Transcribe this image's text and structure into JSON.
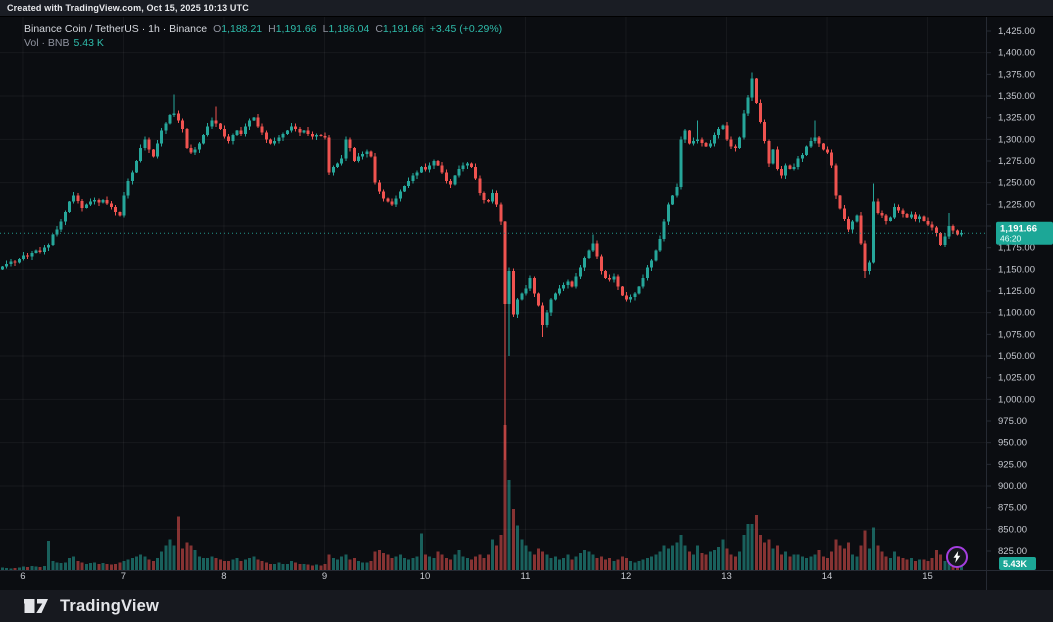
{
  "attribution": "Created with TradingView.com, Oct 15, 2025 10:13 UTC",
  "legend": {
    "title": "Binance Coin / TetherUS · 1h · Binance",
    "ohlc": [
      {
        "k": "O",
        "v": "1,188.21"
      },
      {
        "k": "H",
        "v": "1,191.66"
      },
      {
        "k": "L",
        "v": "1,186.04"
      },
      {
        "k": "C",
        "v": "1,191.66"
      }
    ],
    "change": "+3.45 (+0.29%)",
    "vol_title": "Vol · BNB",
    "vol_value": "5.43 K"
  },
  "price_scale": {
    "last_price_label": {
      "price": "1,191.66",
      "countdown": "46:20"
    },
    "volume_label": "5.43K"
  },
  "footer": {
    "brand": "TradingView"
  },
  "colors": {
    "background": "#0b0d11",
    "strip": "#1a1d24",
    "footer": "#17191f",
    "up": "#26a69a",
    "down": "#ef5350",
    "up_volume": "rgba(38,166,154,0.55)",
    "down_volume": "rgba(239,83,80,0.55)",
    "grid": "rgba(255,255,255,0.05)",
    "axis_text": "#c7cad1",
    "separator": "#262a33",
    "badge": "#1ca797",
    "boost_ring": "#a43ee0"
  },
  "chart_data": {
    "type": "candlestick",
    "title": "Binance Coin / TetherUS",
    "interval": "1h",
    "exchange": "Binance",
    "ohlc_current": {
      "open": 1188.21,
      "high": 1191.66,
      "low": 1186.04,
      "close": 1191.66,
      "change": 3.45,
      "change_pct": 0.29,
      "volume_k": 5.43
    },
    "last_price": 1191.66,
    "y_axis": {
      "min": 825,
      "max": 1425,
      "tick_step": 25
    },
    "price_tick_labels": [
      "1,425.00",
      "1,400.00",
      "1,375.00",
      "1,350.00",
      "1,325.00",
      "1,300.00",
      "1,275.00",
      "1,250.00",
      "1,225.00",
      "1,200.00",
      "1,175.00",
      "1,150.00",
      "1,125.00",
      "1,100.00",
      "1,075.00",
      "1,050.00",
      "1,025.00",
      "1,000.00",
      "975.00",
      "950.00",
      "925.00",
      "900.00",
      "875.00",
      "850.00",
      "825.00"
    ],
    "x_axis": {
      "day_labels": [
        "6",
        "7",
        "8",
        "9",
        "10",
        "11",
        "12",
        "13",
        "14",
        "15"
      ],
      "first_label_candle_index": 5,
      "candles_per_day": 24
    },
    "first_open": 1150,
    "closes": [
      1153,
      1156,
      1159,
      1158,
      1162,
      1166,
      1165,
      1169,
      1172,
      1170,
      1175,
      1178,
      1190,
      1196,
      1205,
      1216,
      1228,
      1235,
      1229,
      1221,
      1225,
      1228,
      1230,
      1227,
      1230,
      1226,
      1222,
      1216,
      1212,
      1235,
      1252,
      1262,
      1275,
      1290,
      1300,
      1288,
      1280,
      1295,
      1310,
      1318,
      1328,
      1330,
      1322,
      1312,
      1290,
      1285,
      1288,
      1295,
      1305,
      1315,
      1322,
      1318,
      1312,
      1303,
      1298,
      1305,
      1310,
      1306,
      1315,
      1322,
      1325,
      1315,
      1308,
      1300,
      1295,
      1298,
      1302,
      1306,
      1310,
      1315,
      1312,
      1308,
      1310,
      1306,
      1303,
      1305,
      1304,
      1302,
      1262,
      1268,
      1272,
      1278,
      1300,
      1290,
      1275,
      1280,
      1283,
      1286,
      1280,
      1250,
      1240,
      1232,
      1228,
      1225,
      1232,
      1240,
      1246,
      1252,
      1258,
      1262,
      1268,
      1265,
      1270,
      1275,
      1270,
      1262,
      1252,
      1248,
      1258,
      1266,
      1270,
      1272,
      1268,
      1255,
      1238,
      1230,
      1228,
      1238,
      1225,
      1205,
      1110,
      1148,
      1098,
      1115,
      1122,
      1128,
      1140,
      1122,
      1108,
      1086,
      1100,
      1115,
      1122,
      1128,
      1132,
      1136,
      1130,
      1142,
      1152,
      1163,
      1172,
      1180,
      1165,
      1148,
      1140,
      1138,
      1142,
      1130,
      1120,
      1115,
      1118,
      1122,
      1130,
      1140,
      1152,
      1160,
      1172,
      1185,
      1205,
      1225,
      1235,
      1245,
      1300,
      1310,
      1295,
      1298,
      1300,
      1296,
      1292,
      1295,
      1305,
      1312,
      1316,
      1300,
      1292,
      1290,
      1302,
      1330,
      1348,
      1370,
      1342,
      1320,
      1298,
      1272,
      1288,
      1266,
      1258,
      1270,
      1266,
      1268,
      1278,
      1282,
      1292,
      1298,
      1302,
      1295,
      1288,
      1285,
      1270,
      1235,
      1220,
      1208,
      1196,
      1205,
      1212,
      1180,
      1148,
      1158,
      1228,
      1215,
      1212,
      1206,
      1210,
      1222,
      1218,
      1214,
      1210,
      1213,
      1208,
      1211,
      1206,
      1202,
      1198,
      1192,
      1178,
      1188,
      1200,
      1195,
      1190,
      1191.66
    ],
    "volumes_k": [
      1.5,
      1.2,
      1.0,
      1.4,
      1.8,
      2.2,
      2.0,
      2.6,
      2.3,
      2.1,
      2.5,
      19,
      6,
      5,
      4.5,
      5,
      8,
      9,
      6,
      5,
      4,
      4.5,
      5,
      4,
      4.5,
      4,
      3.5,
      4,
      5,
      6,
      7,
      8,
      9,
      10,
      9,
      7,
      6,
      8,
      12,
      16,
      20,
      16,
      35,
      14,
      18,
      16,
      13,
      9,
      8,
      8,
      9,
      8,
      7,
      6,
      6,
      7,
      8,
      6,
      7,
      8,
      9,
      7,
      6,
      5,
      4,
      4,
      5,
      4,
      4,
      6,
      5,
      4,
      4,
      3.5,
      3,
      3.5,
      3,
      4,
      10,
      8,
      7,
      9,
      10,
      7,
      8,
      6,
      5,
      5,
      6,
      12,
      13,
      11,
      10,
      8,
      9,
      10,
      8,
      7,
      8,
      9,
      24,
      10,
      9,
      8,
      12,
      10,
      8,
      7,
      10,
      13,
      9,
      8,
      7,
      9,
      10,
      8,
      10,
      20,
      16,
      23,
      95,
      59,
      40,
      29,
      20,
      16,
      12,
      10,
      14,
      12,
      10,
      8,
      9,
      7,
      8,
      10,
      7,
      9,
      11,
      13,
      12,
      10,
      8,
      9,
      7,
      8,
      6,
      7,
      9,
      8,
      6,
      5,
      6,
      7,
      8,
      9,
      10,
      12,
      16,
      14,
      16,
      18,
      23,
      16,
      12,
      10,
      16,
      11,
      10,
      12,
      13,
      15,
      20,
      14,
      10,
      9,
      12,
      23,
      30,
      30,
      36,
      23,
      18,
      20,
      14,
      16,
      10,
      12,
      9,
      10,
      10,
      9,
      8,
      9,
      10,
      13,
      9,
      8,
      12,
      20,
      16,
      14,
      18,
      10,
      9,
      16,
      26,
      14,
      28,
      16,
      12,
      9,
      8,
      12,
      9,
      8,
      7,
      8,
      6,
      7,
      7,
      6,
      8,
      13,
      10,
      6,
      10,
      7,
      6,
      5.43
    ],
    "wick_overrides": [
      {
        "i": 41,
        "high": 1352
      },
      {
        "i": 51,
        "high": 1338
      },
      {
        "i": 120,
        "low": 930
      },
      {
        "i": 121,
        "low": 1050
      },
      {
        "i": 129,
        "low": 1072
      },
      {
        "i": 141,
        "high": 1190
      },
      {
        "i": 166,
        "high": 1322
      },
      {
        "i": 179,
        "high": 1377
      },
      {
        "i": 194,
        "high": 1322
      },
      {
        "i": 206,
        "low": 1140
      },
      {
        "i": 208,
        "high": 1249
      },
      {
        "i": 226,
        "high": 1215
      }
    ]
  }
}
